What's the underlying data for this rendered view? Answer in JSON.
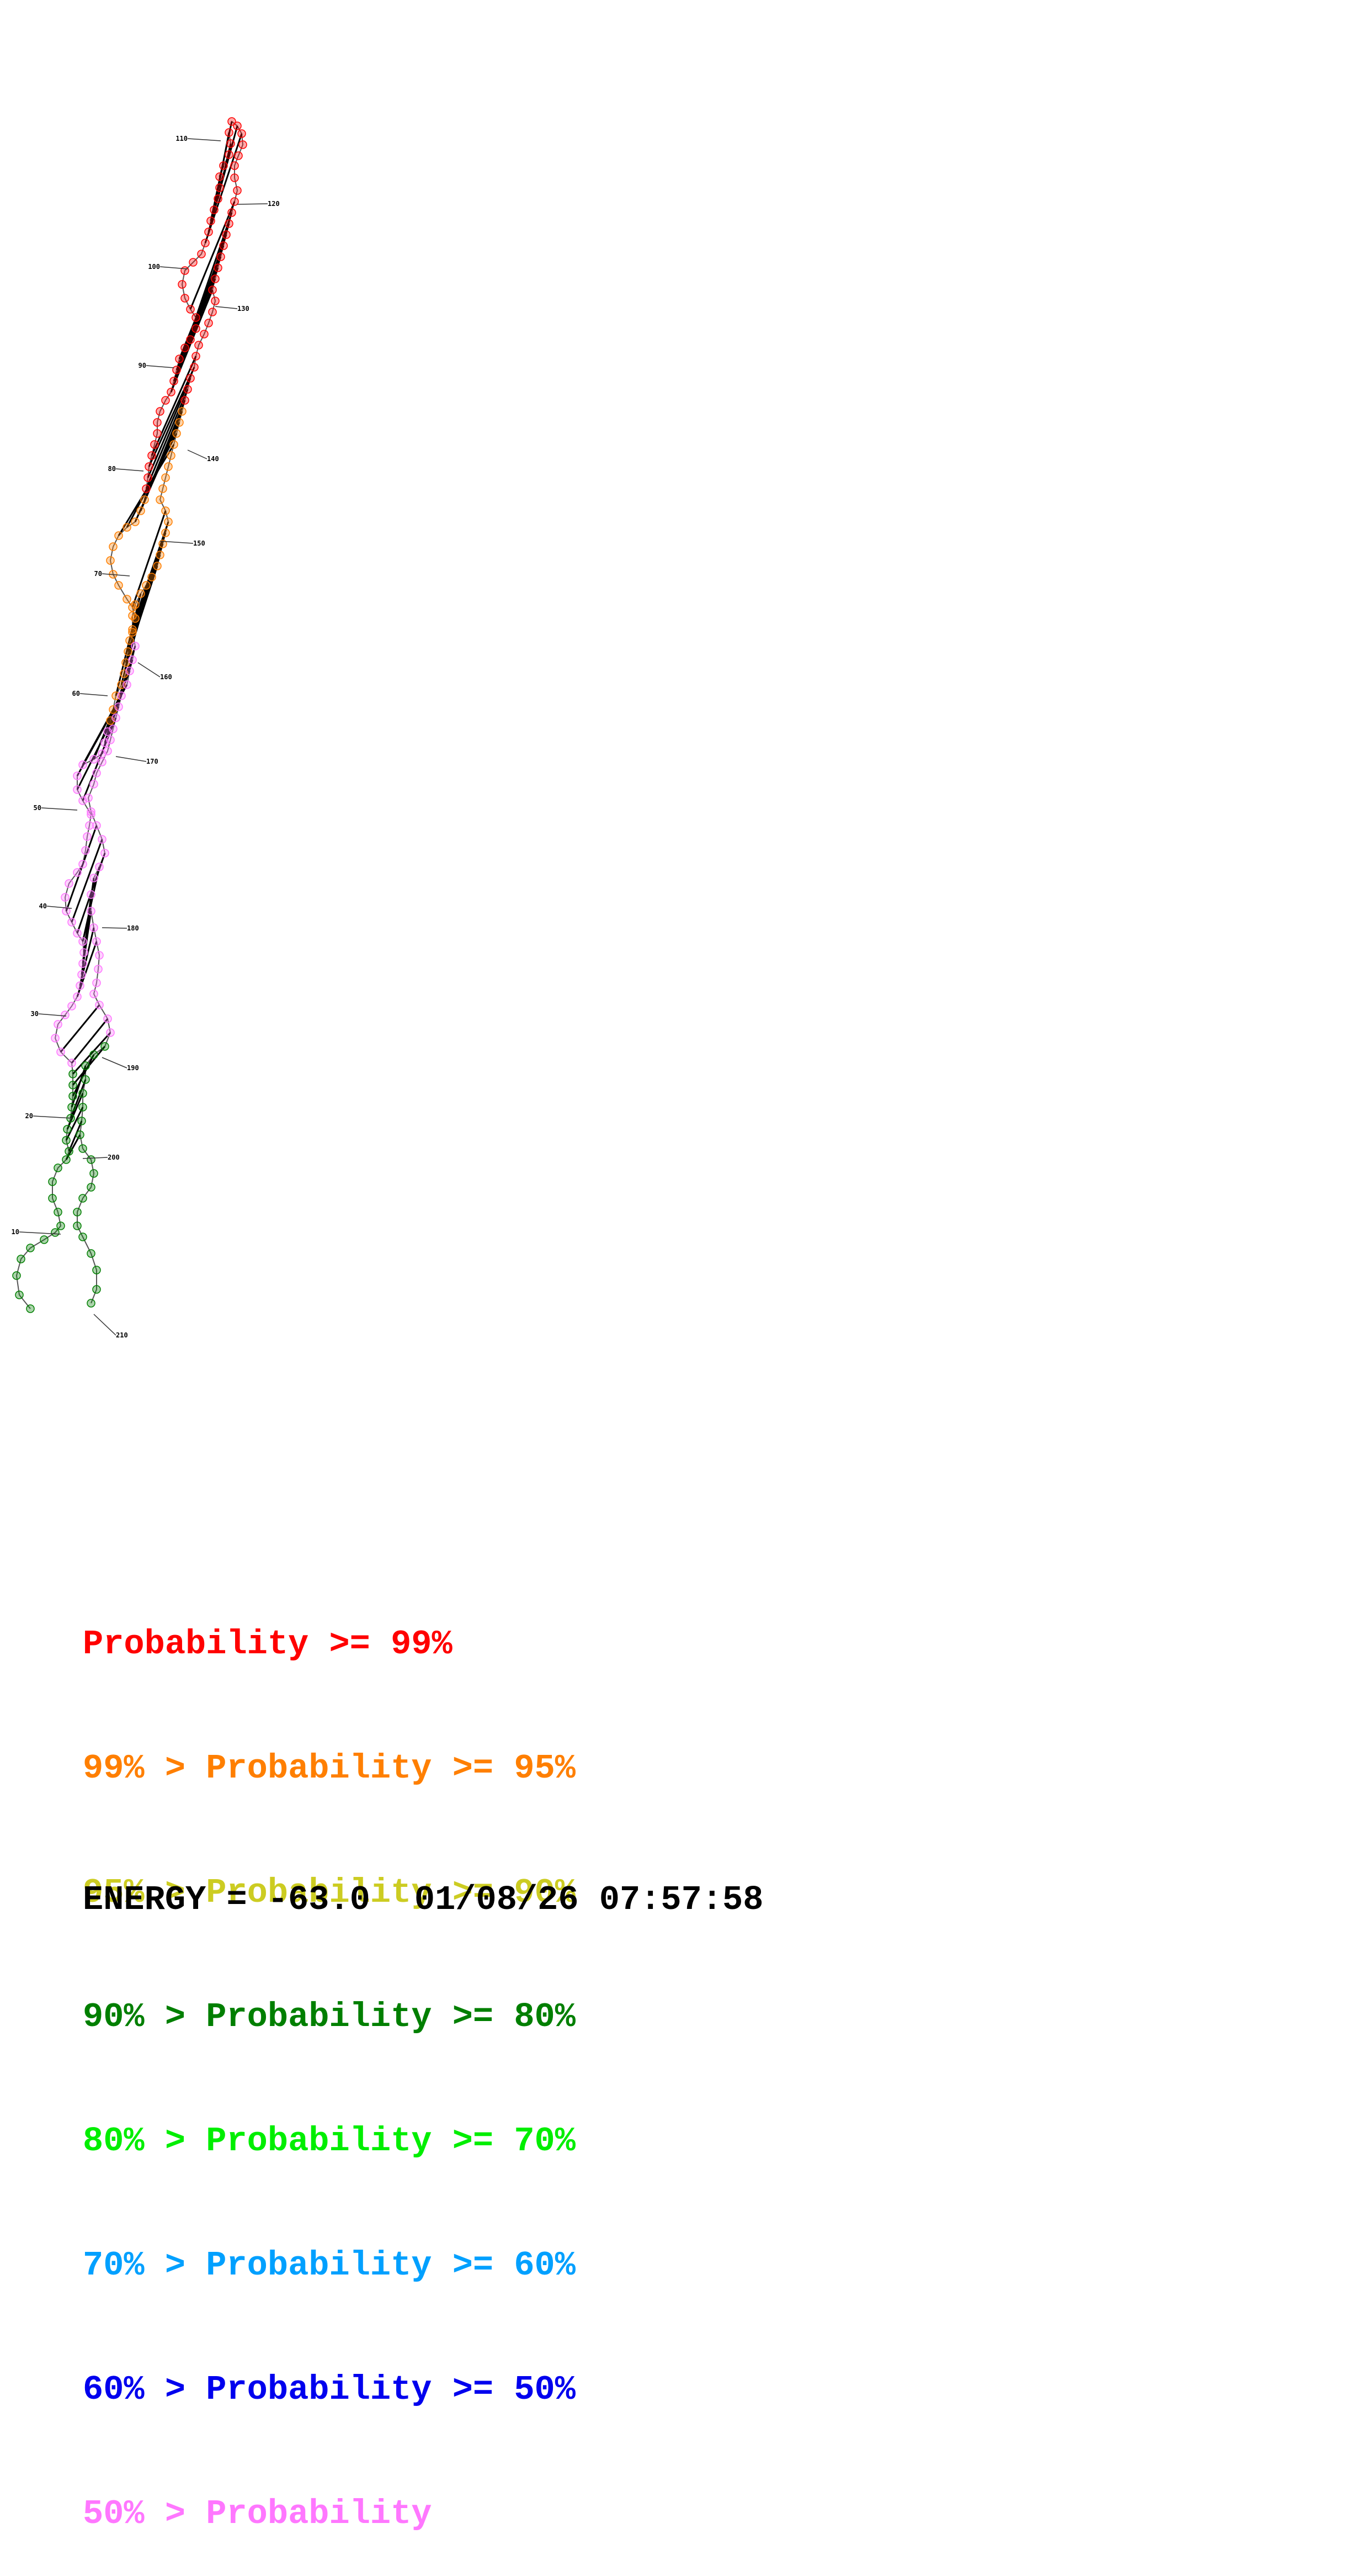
{
  "diagram": {
    "tick_labels": [
      "10",
      "20",
      "30",
      "40",
      "50",
      "60",
      "70",
      "80",
      "90",
      "100",
      "110",
      "120",
      "130",
      "140",
      "150",
      "160",
      "170",
      "180",
      "190",
      "200",
      "210"
    ]
  },
  "legend": {
    "rows": [
      {
        "prefix": "",
        "text": "Probability >= 99%",
        "color": "#ff0000"
      },
      {
        "prefix": "99% > ",
        "text": "Probability >= 95%",
        "color": "#ff7f00"
      },
      {
        "prefix": "95% > ",
        "text": "Probability >= 90%",
        "color": "#cccc22"
      },
      {
        "prefix": "90% > ",
        "text": "Probability >= 80%",
        "color": "#007f00"
      },
      {
        "prefix": "80% > ",
        "text": "Probability >= 70%",
        "color": "#00ee00"
      },
      {
        "prefix": "70% > ",
        "text": "Probability >= 60%",
        "color": "#00a0ff"
      },
      {
        "prefix": "60% > ",
        "text": "Probability >= 50%",
        "color": "#0000ee"
      },
      {
        "prefix": "50% > ",
        "text": "Probability",
        "color": "#ff77ff"
      }
    ]
  },
  "footer": {
    "energy": "ENERGY = -63.0",
    "timestamp": "01/08/26 07:57:58"
  }
}
